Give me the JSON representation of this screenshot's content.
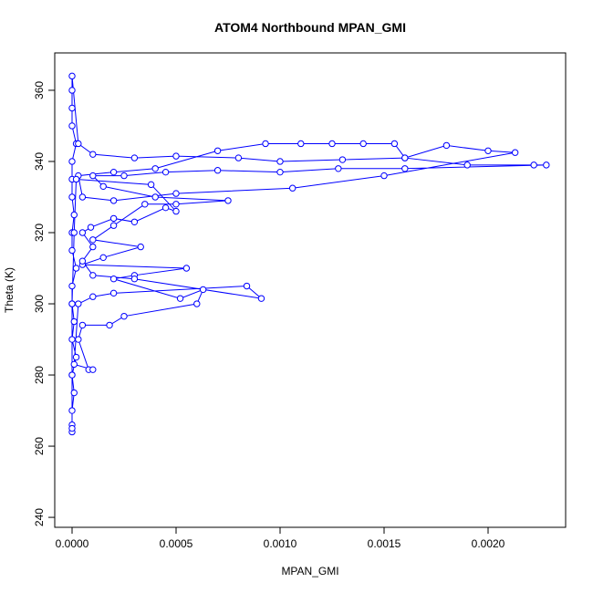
{
  "chart_data": {
    "type": "line",
    "title": "ATOM4 Northbound MPAN_GMI",
    "x_label": "MPAN_GMI",
    "y_label": "Theta (K)",
    "color": "#0000ff",
    "markers": true,
    "x": [
      0,
      0,
      0,
      1e-05,
      0,
      2e-05,
      0,
      1e-05,
      0,
      0,
      2e-05,
      0,
      0,
      1e-05,
      0,
      0,
      0,
      2e-05,
      0,
      0,
      0,
      0,
      3e-05,
      0.0001,
      0.0003,
      0.0005,
      0.0008,
      0.001,
      0.0013,
      0.0016,
      0.0018,
      0.002,
      0.00213,
      0.0015,
      0.00106,
      0.0005,
      0.0002,
      5e-05,
      3e-05,
      0.0002,
      0.0004,
      0.0007,
      0.00093,
      0.0011,
      0.00125,
      0.0014,
      0.00155,
      0.0016,
      0.0019,
      0.00222,
      0.00228,
      0.0016,
      0.00128,
      0.001,
      0.0007,
      0.00045,
      0.00025,
      0.0001,
      0.00015,
      0.0004,
      0.00075,
      0.0005,
      0.00035,
      0.0002,
      0.0001,
      0.00033,
      0.00015,
      5e-05,
      0.00055,
      0.0003,
      0.0002,
      0.00052,
      0.00063,
      0.0006,
      0.00025,
      0.00018,
      5e-05,
      3e-05,
      8e-05,
      0.0001,
      1e-05,
      3e-05,
      0.0001,
      0.0002,
      0.00084,
      0.00091,
      0.0003,
      0.0001,
      5e-05,
      0.0001,
      5e-05,
      9e-05,
      0.0002,
      0.0003,
      0.00045,
      0.0005,
      0.00038,
      2e-05,
      1e-05,
      0,
      0,
      0
    ],
    "values": [
      264,
      266,
      270,
      275,
      280,
      285,
      290,
      295,
      300,
      305,
      310,
      315,
      320,
      325,
      330,
      335,
      340,
      345,
      350,
      355,
      360,
      364,
      345,
      342,
      341,
      341.5,
      341,
      340,
      340.5,
      341,
      344.5,
      343,
      342.5,
      336,
      332.5,
      331,
      329,
      330,
      336,
      337,
      338,
      343,
      345,
      345,
      345,
      345,
      345,
      341,
      339,
      339,
      339,
      338,
      338,
      337,
      337.5,
      337,
      336,
      336,
      333,
      330,
      329,
      328,
      328,
      322,
      318,
      316,
      313,
      311,
      310,
      308,
      307,
      301.5,
      304,
      300,
      296.5,
      294,
      294,
      290,
      281.5,
      281.5,
      283,
      300,
      302,
      303,
      305,
      301.5,
      307,
      308,
      312,
      316,
      320,
      321.5,
      324,
      323,
      327,
      326,
      333.5,
      335,
      320,
      300,
      280,
      265
    ],
    "xlim": [
      -8.33e-05,
      0.0023728
    ],
    "ylim": [
      237.2,
      370.5
    ],
    "xticks": [
      {
        "value": 0,
        "label": "0.0000"
      },
      {
        "value": 0.0005,
        "label": "0.0005"
      },
      {
        "value": 0.001,
        "label": "0.0010"
      },
      {
        "value": 0.0015,
        "label": "0.0015"
      },
      {
        "value": 0.002,
        "label": "0.0020"
      }
    ],
    "yticks": [
      240,
      260,
      280,
      300,
      320,
      340,
      360
    ]
  }
}
